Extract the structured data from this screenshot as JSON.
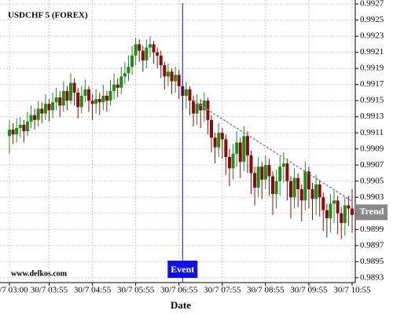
{
  "chart_data": {
    "type": "candlestick",
    "title": "USDCHF 5 (FOREX)",
    "watermark": "www.delkos.com",
    "x_label": "Date",
    "categories": [
      "30/7 03:00",
      null,
      null,
      null,
      null,
      null,
      null,
      null,
      null,
      null,
      null,
      "30/7 03:55",
      null,
      null,
      null,
      null,
      null,
      null,
      null,
      null,
      null,
      null,
      null,
      "30/7 04:55",
      null,
      null,
      null,
      null,
      null,
      null,
      null,
      null,
      null,
      null,
      null,
      "30/7 05:55",
      null,
      null,
      null,
      null,
      null,
      null,
      null,
      null,
      null,
      null,
      null,
      "30/7 06:55",
      null,
      null,
      null,
      null,
      null,
      null,
      null,
      null,
      null,
      null,
      null,
      "30/7 07:55",
      null,
      null,
      null,
      null,
      null,
      null,
      null,
      null,
      null,
      null,
      null,
      "30/7 08:55",
      null,
      null,
      null,
      null,
      null,
      null,
      null,
      null,
      null,
      null,
      null,
      "30/7 09:55",
      null,
      null,
      null,
      null,
      null,
      null,
      null,
      null,
      null,
      null,
      null,
      "30/7 10:55"
    ],
    "open": [
      0.99106,
      0.99114,
      0.99108,
      0.99116,
      0.9912,
      0.99112,
      0.99124,
      0.99132,
      0.99126,
      0.9914,
      0.99134,
      0.99146,
      0.99138,
      0.99148,
      0.99154,
      0.99144,
      0.99162,
      0.9915,
      0.99172,
      0.9916,
      0.99142,
      0.99156,
      0.99164,
      0.9915,
      0.99146,
      0.99152,
      0.99148,
      0.99156,
      0.9915,
      0.99162,
      0.9917,
      0.99166,
      0.9918,
      0.99184,
      0.99192,
      0.99206,
      0.9922,
      0.99212,
      0.992,
      0.99216,
      0.9922,
      0.9921,
      0.99206,
      0.99194,
      0.9918,
      0.99186,
      0.99174,
      0.99182,
      0.99168,
      0.99156,
      0.99164,
      0.9915,
      0.99134,
      0.99146,
      0.99138,
      0.9915,
      0.99126,
      0.99104,
      0.99092,
      0.9911,
      0.99102,
      0.9908,
      0.99066,
      0.99084,
      0.99098,
      0.99074,
      0.99106,
      0.99082,
      0.9906,
      0.99042,
      0.99068,
      0.99052,
      0.9907,
      0.99056,
      0.99034,
      0.9905,
      0.99068,
      0.99072,
      0.9905,
      0.9903,
      0.99054,
      0.9904,
      0.99026,
      0.99062,
      0.9904,
      0.99028,
      0.99046,
      0.9903,
      0.99014,
      0.99004,
      0.99022,
      0.99026,
      0.9901,
      0.98998,
      0.9902,
      0.99016
    ],
    "high": [
      0.99126,
      0.99122,
      0.99128,
      0.9913,
      0.99126,
      0.99136,
      0.99144,
      0.9914,
      0.9915,
      0.99148,
      0.99158,
      0.99152,
      0.9916,
      0.99166,
      0.99162,
      0.99174,
      0.99168,
      0.99184,
      0.99178,
      0.99166,
      0.99168,
      0.99176,
      0.99168,
      0.99158,
      0.99164,
      0.9916,
      0.9917,
      0.99162,
      0.99176,
      0.99184,
      0.99178,
      0.99192,
      0.99198,
      0.99206,
      0.99218,
      0.99228,
      0.99226,
      0.99218,
      0.99226,
      0.9923,
      0.99224,
      0.99216,
      0.99212,
      0.99198,
      0.99196,
      0.9919,
      0.99192,
      0.99188,
      0.99174,
      0.99174,
      0.99168,
      0.99156,
      0.99158,
      0.99152,
      0.9916,
      0.99154,
      0.99132,
      0.9911,
      0.99122,
      0.99116,
      0.99108,
      0.9909,
      0.99096,
      0.99112,
      0.99104,
      0.99118,
      0.99112,
      0.99088,
      0.99068,
      0.9908,
      0.99074,
      0.99082,
      0.99078,
      0.99062,
      0.99064,
      0.9908,
      0.99086,
      0.99078,
      0.99056,
      0.99066,
      0.9906,
      0.99046,
      0.99074,
      0.99068,
      0.99048,
      0.99058,
      0.99052,
      0.99036,
      0.99022,
      0.99034,
      0.99038,
      0.99032,
      0.99018,
      0.9903,
      0.99032,
      0.9904
    ],
    "low": [
      0.99084,
      0.99096,
      0.99098,
      0.99104,
      0.99098,
      0.99106,
      0.99116,
      0.99114,
      0.99118,
      0.99122,
      0.99126,
      0.99124,
      0.99128,
      0.99138,
      0.9913,
      0.99136,
      0.99138,
      0.99146,
      0.99144,
      0.99128,
      0.99134,
      0.99148,
      0.99136,
      0.99126,
      0.99134,
      0.99132,
      0.99138,
      0.99136,
      0.99144,
      0.99152,
      0.99154,
      0.99158,
      0.9917,
      0.99174,
      0.99182,
      0.99194,
      0.99198,
      0.99186,
      0.9919,
      0.99204,
      0.99196,
      0.9919,
      0.99178,
      0.99164,
      0.99168,
      0.99158,
      0.9916,
      0.99152,
      0.99138,
      0.9914,
      0.99132,
      0.99118,
      0.9912,
      0.99116,
      0.99124,
      0.99108,
      0.99086,
      0.99072,
      0.9908,
      0.99078,
      0.99058,
      0.99044,
      0.99052,
      0.99068,
      0.99054,
      0.99062,
      0.9906,
      0.99034,
      0.9902,
      0.9903,
      0.99028,
      0.9904,
      0.99032,
      0.99008,
      0.99016,
      0.99032,
      0.99048,
      0.99026,
      0.99004,
      0.99016,
      0.99018,
      0.99,
      0.99014,
      0.99016,
      0.99002,
      0.99008,
      0.99006,
      0.98988,
      0.9898,
      0.98986,
      0.98998,
      0.98984,
      0.98978,
      0.98982,
      0.98994,
      0.98986
    ],
    "close": [
      0.99114,
      0.99108,
      0.99116,
      0.9912,
      0.99112,
      0.99124,
      0.99132,
      0.99126,
      0.9914,
      0.99134,
      0.99146,
      0.99138,
      0.99148,
      0.99154,
      0.99144,
      0.99162,
      0.9915,
      0.99172,
      0.9916,
      0.99142,
      0.99156,
      0.99164,
      0.9915,
      0.99146,
      0.99152,
      0.99148,
      0.99156,
      0.9915,
      0.99162,
      0.9917,
      0.99166,
      0.9918,
      0.99184,
      0.99192,
      0.99206,
      0.9922,
      0.99212,
      0.992,
      0.99216,
      0.9922,
      0.9921,
      0.99206,
      0.99194,
      0.9918,
      0.99186,
      0.99174,
      0.99182,
      0.99168,
      0.99156,
      0.99164,
      0.9915,
      0.99134,
      0.99146,
      0.99138,
      0.9915,
      0.99126,
      0.99104,
      0.99092,
      0.9911,
      0.99102,
      0.9908,
      0.99066,
      0.99084,
      0.99098,
      0.99074,
      0.99106,
      0.99082,
      0.9906,
      0.99042,
      0.99068,
      0.99052,
      0.9907,
      0.99056,
      0.99034,
      0.9905,
      0.99068,
      0.99072,
      0.9905,
      0.9903,
      0.99054,
      0.9904,
      0.99026,
      0.99062,
      0.9904,
      0.99028,
      0.99046,
      0.9903,
      0.99014,
      0.99004,
      0.99022,
      0.99026,
      0.9901,
      0.98998,
      0.9902,
      0.99016,
      0.99008
    ],
    "up_color": "#1e8c1e",
    "down_color": "#8b0a0a",
    "ylim": [
      0.98924,
      0.99275
    ],
    "yticks": [
      0.9893,
      0.9895,
      0.9897,
      0.9899,
      0.9901,
      0.9903,
      0.9905,
      0.9907,
      0.9909,
      0.9911,
      0.9913,
      0.9915,
      0.9917,
      0.9919,
      0.9921,
      0.9923,
      0.9925,
      0.9927
    ],
    "grid": true,
    "event": {
      "label": "Event",
      "index": 48,
      "color": "#1010e0"
    },
    "trend": {
      "label": "Trend",
      "x": [
        51,
        95
      ],
      "values": [
        0.9915,
        0.99025
      ],
      "color": "#888888"
    }
  }
}
